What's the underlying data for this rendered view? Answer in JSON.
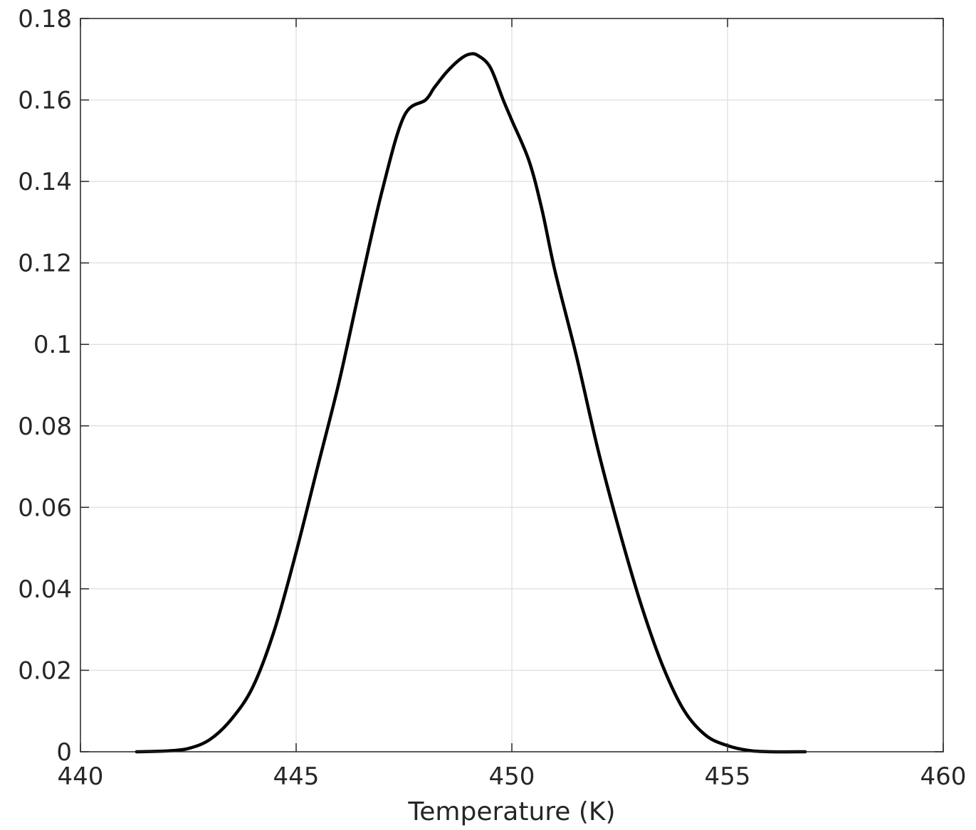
{
  "chart_data": {
    "type": "line",
    "title": "",
    "xlabel": "Temperature (K)",
    "ylabel": "",
    "xlim": [
      440,
      460
    ],
    "ylim": [
      0,
      0.18
    ],
    "grid": true,
    "xticks": [
      440,
      445,
      450,
      455,
      460
    ],
    "xtick_labels": [
      "440",
      "445",
      "450",
      "455",
      "460"
    ],
    "yticks": [
      0,
      0.02,
      0.04,
      0.06,
      0.08,
      0.1,
      0.12,
      0.14,
      0.16,
      0.18
    ],
    "ytick_labels": [
      "0",
      "0.02",
      "0.04",
      "0.06",
      "0.08",
      "0.1",
      "0.12",
      "0.14",
      "0.16",
      "0.18"
    ],
    "series": [
      {
        "color": "#000000",
        "x": [
          441.3,
          442.0,
          442.5,
          443.0,
          443.5,
          444.0,
          444.5,
          445.0,
          445.5,
          446.0,
          446.5,
          447.0,
          447.5,
          448.0,
          448.2,
          448.5,
          448.8,
          449.0,
          449.2,
          449.5,
          449.8,
          450.0,
          450.4,
          450.7,
          451.0,
          451.5,
          452.0,
          452.5,
          453.0,
          453.5,
          454.0,
          454.5,
          455.0,
          455.5,
          456.0,
          456.8
        ],
        "y": [
          0.0,
          0.0002,
          0.0008,
          0.003,
          0.008,
          0.016,
          0.03,
          0.049,
          0.07,
          0.091,
          0.115,
          0.138,
          0.156,
          0.16,
          0.163,
          0.167,
          0.17,
          0.1712,
          0.171,
          0.168,
          0.16,
          0.155,
          0.145,
          0.133,
          0.118,
          0.097,
          0.074,
          0.054,
          0.036,
          0.021,
          0.01,
          0.004,
          0.0015,
          0.0003,
          0.0,
          0.0
        ]
      }
    ]
  }
}
